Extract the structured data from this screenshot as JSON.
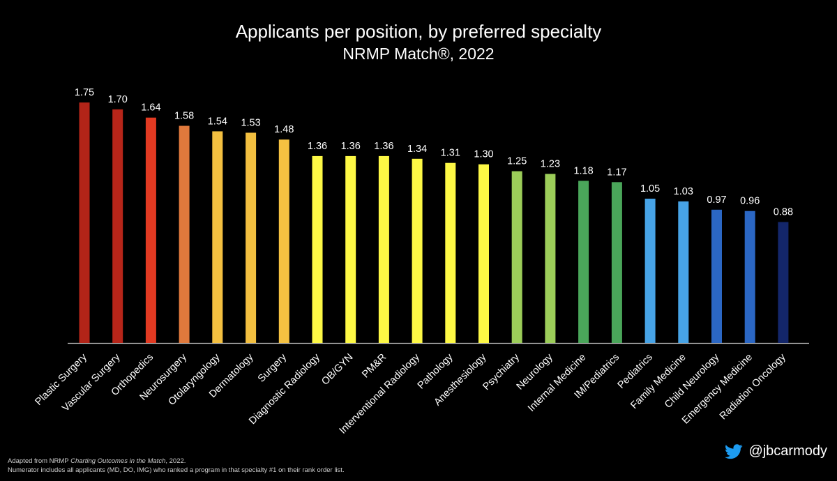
{
  "chart_data": {
    "type": "bar",
    "title": "Applicants per position, by preferred specialty",
    "subtitle": "NRMP Match®, 2022",
    "categories": [
      "Plastic Surgery",
      "Vascular Surgery",
      "Orthopedics",
      "Neurosurgery",
      "Otolaryngology",
      "Dermatology",
      "Surgery",
      "Diagnostic Radiology",
      "OB/GYN",
      "PM&R",
      "Interventional Radiology",
      "Pathology",
      "Anesthesiology",
      "Psychiatry",
      "Neurology",
      "Internal Medicine",
      "IM/Pediatrics",
      "Pediatrics",
      "Family Medicine",
      "Child Neurology",
      "Emergency Medicine",
      "Radiation Oncology"
    ],
    "values": [
      1.75,
      1.7,
      1.64,
      1.58,
      1.54,
      1.53,
      1.48,
      1.36,
      1.36,
      1.36,
      1.34,
      1.31,
      1.3,
      1.25,
      1.23,
      1.18,
      1.17,
      1.05,
      1.03,
      0.97,
      0.96,
      0.88
    ],
    "value_labels": [
      "1.75",
      "1.70",
      "1.64",
      "1.58",
      "1.54",
      "1.53",
      "1.48",
      "1.36",
      "1.36",
      "1.36",
      "1.34",
      "1.31",
      "1.30",
      "1.25",
      "1.23",
      "1.18",
      "1.17",
      "1.05",
      "1.03",
      "0.97",
      "0.96",
      "0.88"
    ],
    "colors": [
      "#b22418",
      "#b72519",
      "#e23a22",
      "#e0793c",
      "#f4c040",
      "#f2bf40",
      "#f5c141",
      "#fdf845",
      "#fdf845",
      "#fdf845",
      "#fdf845",
      "#fdf845",
      "#fdf845",
      "#9ccd59",
      "#9ccd59",
      "#4aa65a",
      "#4aa65a",
      "#47a3e6",
      "#47a3e6",
      "#2b67c4",
      "#2b67c4",
      "#13266a"
    ],
    "ylim": [
      0,
      1.75
    ],
    "grid": false,
    "legend": "none",
    "xlabel": "",
    "ylabel": ""
  },
  "footer": {
    "note1_prefix": "Adapted from NRMP ",
    "note1_italic": "Charting Outcomes in the Match",
    "note1_suffix": ", 2022.",
    "note2": "Numerator includes all applicants (MD, DO, IMG) who ranked a program in that specialty #1 on their rank order list.",
    "handle": "@jbcarmody",
    "twitter_icon": "twitter-bird-icon",
    "twitter_color": "#1d9bf0"
  }
}
